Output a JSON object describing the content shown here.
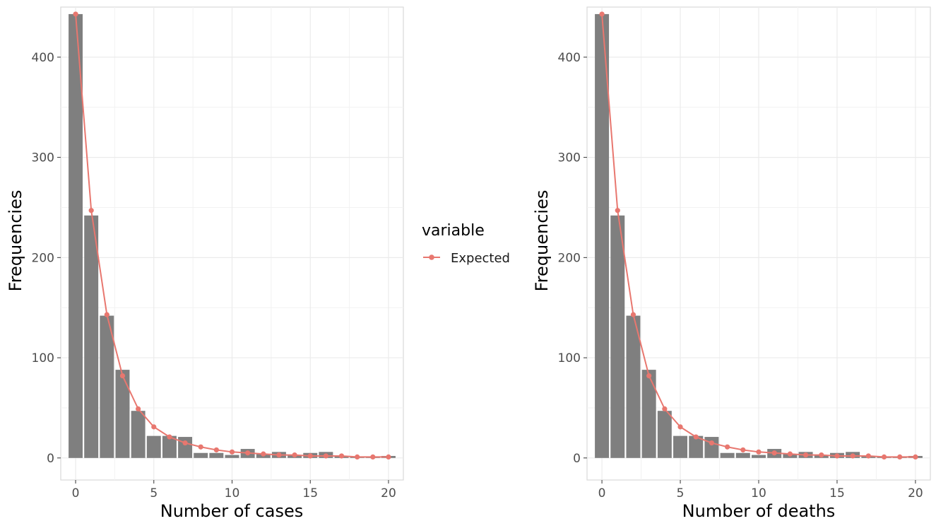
{
  "legend": {
    "title": "variable",
    "entries": [
      {
        "label": "Expected",
        "color": "#e8776f"
      }
    ]
  },
  "chart_data": [
    {
      "type": "bar",
      "xlabel": "Number of cases",
      "ylabel": "Frequencies",
      "xlim": [
        -0.95,
        20.95
      ],
      "ylim": [
        -22,
        450
      ],
      "x_ticks": [
        0,
        5,
        10,
        15,
        20
      ],
      "y_ticks": [
        0,
        100,
        200,
        300,
        400
      ],
      "grid": true,
      "bar_color": "#7f7f7f",
      "line_color": "#e8776f",
      "x": [
        0,
        1,
        2,
        3,
        4,
        5,
        6,
        7,
        8,
        9,
        10,
        11,
        12,
        13,
        14,
        15,
        16,
        17,
        18,
        19,
        20
      ],
      "series": [
        {
          "kind": "bar",
          "values": [
            443,
            242,
            142,
            88,
            47,
            22,
            22,
            21,
            5,
            5,
            3,
            9,
            4,
            6,
            3,
            5,
            6,
            2,
            1,
            1,
            2
          ]
        },
        {
          "kind": "line",
          "name": "Expected",
          "values": [
            443,
            247,
            143,
            82,
            49,
            31,
            21,
            15,
            11,
            8,
            6,
            5,
            4,
            3,
            3,
            2,
            2,
            2,
            1,
            1,
            1
          ]
        }
      ]
    },
    {
      "type": "bar",
      "xlabel": "Number of deaths",
      "ylabel": "Frequencies",
      "xlim": [
        -0.95,
        20.95
      ],
      "ylim": [
        -22,
        450
      ],
      "x_ticks": [
        0,
        5,
        10,
        15,
        20
      ],
      "y_ticks": [
        0,
        100,
        200,
        300,
        400
      ],
      "grid": true,
      "bar_color": "#7f7f7f",
      "line_color": "#e8776f",
      "x": [
        0,
        1,
        2,
        3,
        4,
        5,
        6,
        7,
        8,
        9,
        10,
        11,
        12,
        13,
        14,
        15,
        16,
        17,
        18,
        19,
        20
      ],
      "series": [
        {
          "kind": "bar",
          "values": [
            443,
            242,
            142,
            88,
            47,
            22,
            22,
            21,
            5,
            5,
            3,
            9,
            4,
            6,
            3,
            5,
            6,
            2,
            1,
            1,
            2
          ]
        },
        {
          "kind": "line",
          "name": "Expected",
          "values": [
            443,
            247,
            143,
            82,
            49,
            31,
            21,
            15,
            11,
            8,
            6,
            5,
            4,
            3,
            3,
            2,
            2,
            2,
            1,
            1,
            1
          ]
        }
      ]
    }
  ]
}
